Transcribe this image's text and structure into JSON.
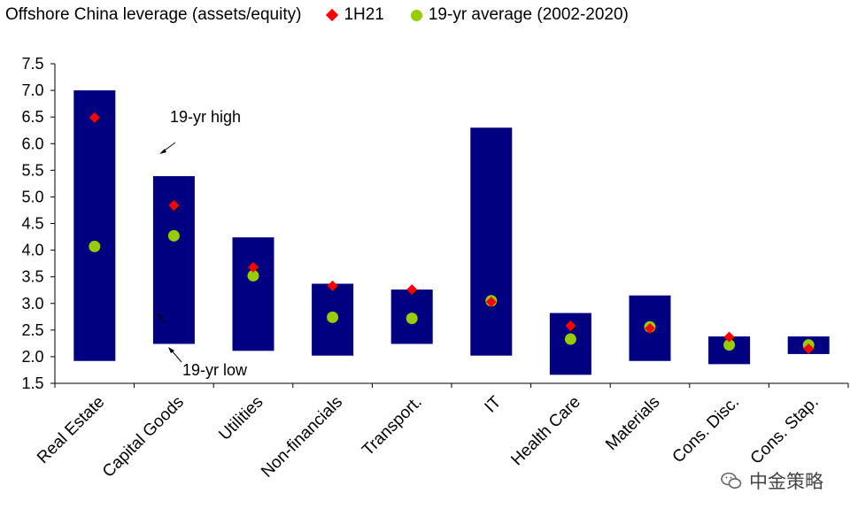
{
  "chart_data": {
    "type": "range-bar",
    "title": "Offshore China leverage (assets/equity)",
    "categories": [
      "Real Estate",
      "Capital Goods",
      "Utilities",
      "Non-financials",
      "Transport.",
      "IT",
      "Health Care",
      "Materials",
      "Cons. Disc.",
      "Cons. Stap."
    ],
    "range_19yr": {
      "low": [
        1.92,
        2.24,
        2.11,
        2.02,
        2.24,
        2.02,
        1.66,
        1.92,
        1.86,
        2.05
      ],
      "high": [
        7.0,
        5.39,
        4.24,
        3.37,
        3.26,
        6.3,
        2.82,
        3.15,
        2.38,
        2.38
      ]
    },
    "series": [
      {
        "name": "1H21",
        "values": [
          6.49,
          4.84,
          3.68,
          3.33,
          3.26,
          3.03,
          2.58,
          2.53,
          2.37,
          2.15
        ]
      },
      {
        "name": "19-yr average (2002-2020)",
        "values": [
          4.07,
          4.27,
          3.52,
          2.74,
          2.72,
          3.05,
          2.33,
          2.56,
          2.22,
          2.22
        ]
      }
    ],
    "ylim": [
      1.5,
      7.5
    ],
    "yticks": [
      "1.5",
      "2.0",
      "2.5",
      "3.0",
      "3.5",
      "4.0",
      "4.5",
      "5.0",
      "5.5",
      "6.0",
      "6.5",
      "7.0",
      "7.5"
    ],
    "annotations": {
      "high": "19-yr high",
      "low": "19-yr low"
    },
    "colors": {
      "range_bar": "#000080",
      "h1": "#ff0000",
      "avg": "#99cc00",
      "tick_marker": "#000000"
    },
    "legend_position": "top",
    "grid": false
  },
  "watermark": {
    "text": "中金策略"
  }
}
